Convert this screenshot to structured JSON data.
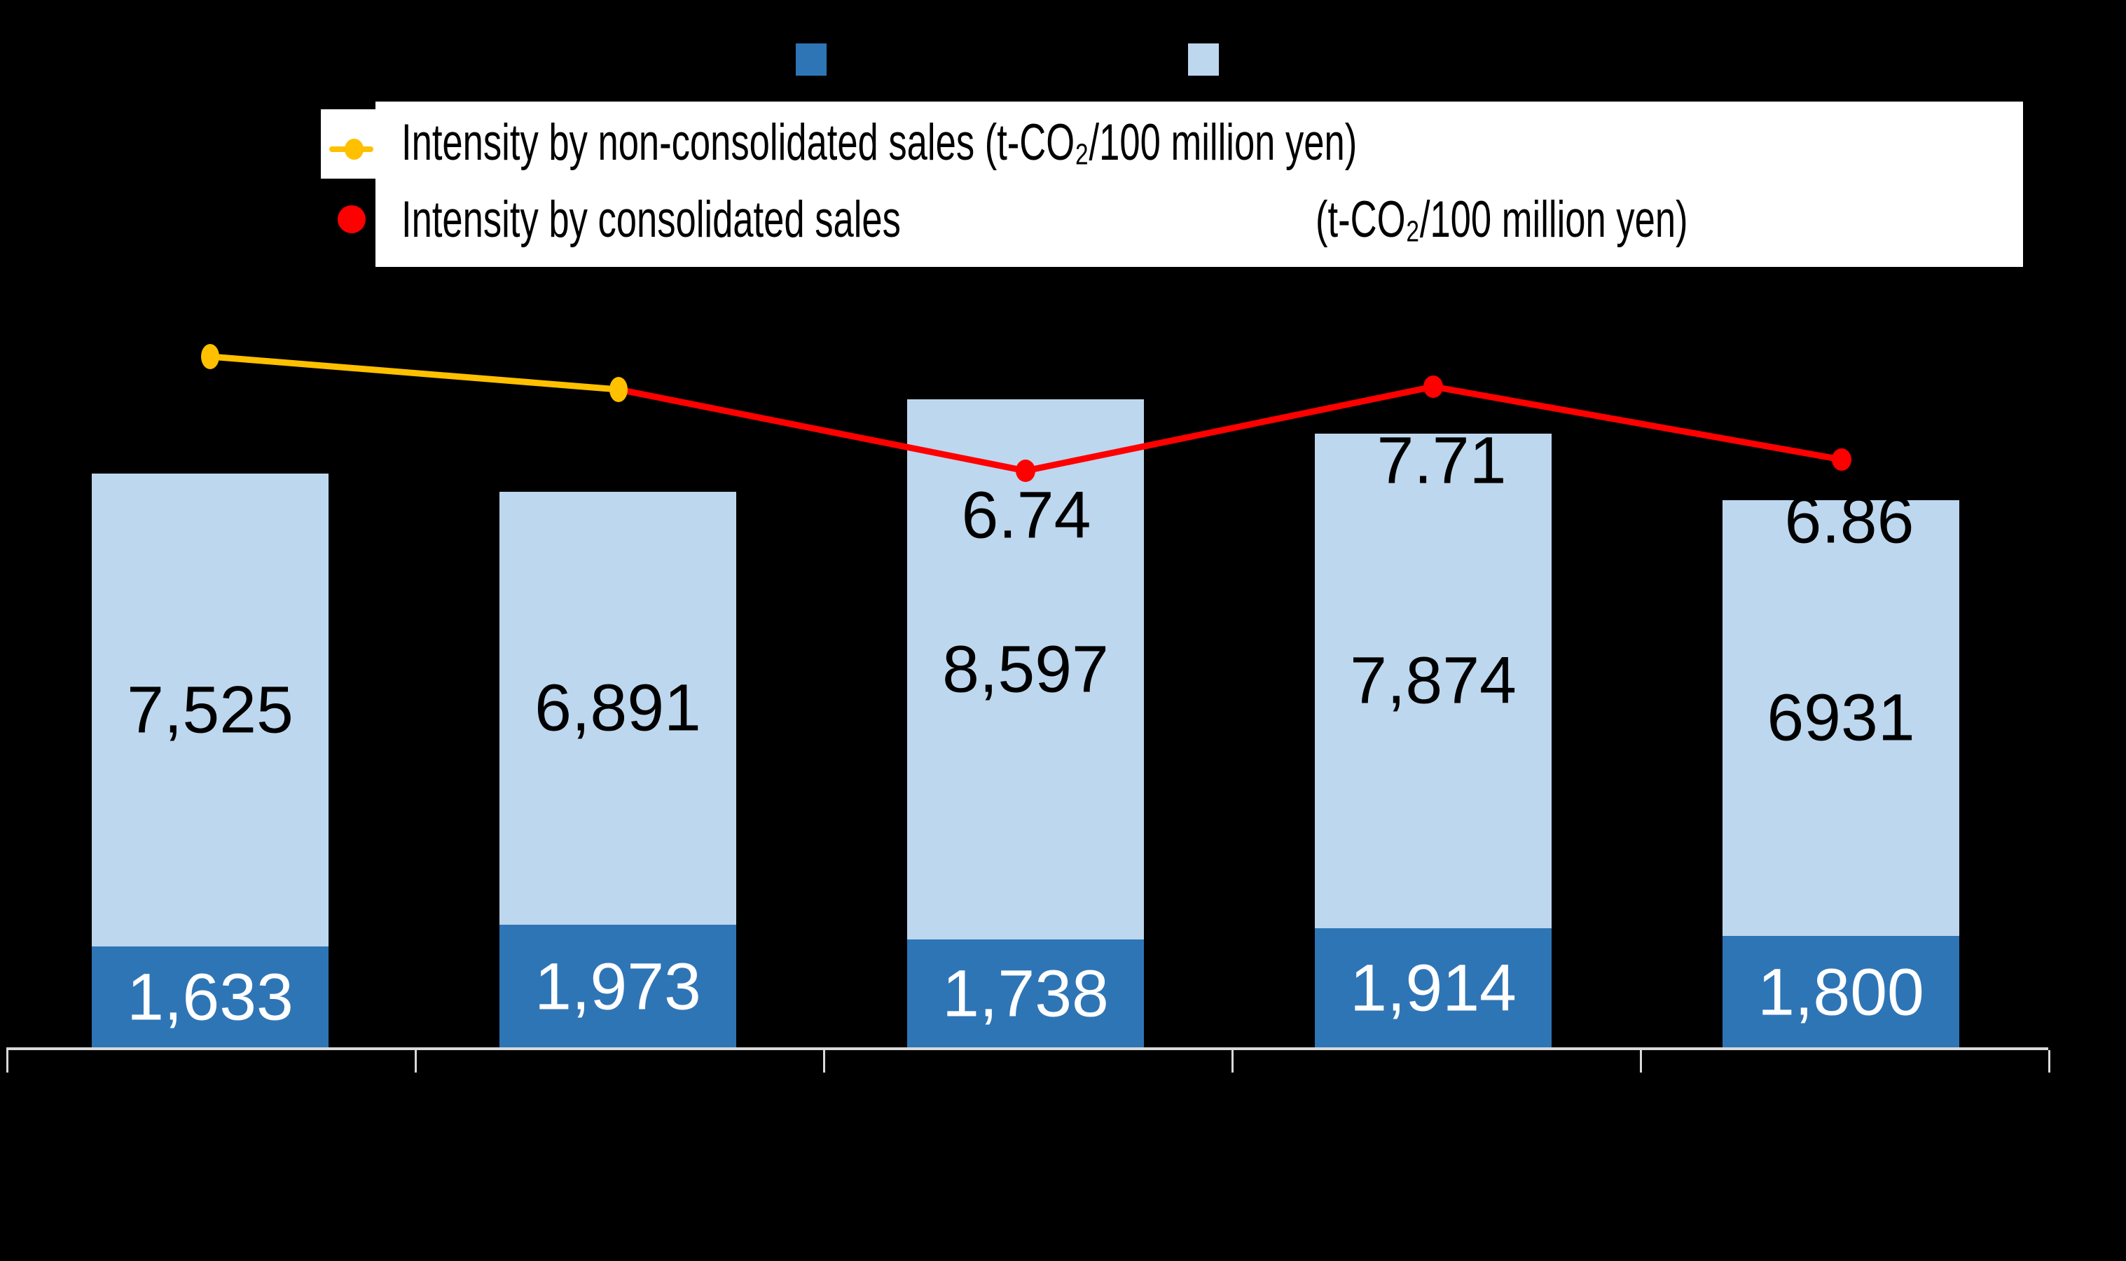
{
  "background_color": "#000000",
  "top_legend_swatches": [
    {
      "name": "dark-blue-series-swatch",
      "color": "#2E75B6"
    },
    {
      "name": "light-blue-series-swatch",
      "color": "#BDD7EE"
    }
  ],
  "legend": {
    "items": [
      {
        "label": "Intensity by non-consolidated sales (t-CO₂/100 million yen)",
        "marker": "yellow-line-dot",
        "color": "#FFC000"
      },
      {
        "label": "Intensity by consolidated sales",
        "unit": "(t-CO₂/100 million yen)",
        "marker": "red-dot",
        "color": "#FF0000"
      }
    ]
  },
  "chart_data": {
    "type": "combo-stacked-bar-line",
    "categories": [
      "",
      "",
      "",
      "",
      ""
    ],
    "bar_series": [
      {
        "name": "bottom-segment-dark-blue",
        "color": "#2E75B6",
        "label_color": "#FFFFFF",
        "values": [
          1633,
          1973,
          1738,
          1914,
          1800
        ],
        "labels": [
          "1,633",
          "1,973",
          "1,738",
          "1,914",
          "1,800"
        ]
      },
      {
        "name": "top-segment-light-blue",
        "color": "#BDD7EE",
        "label_color": "#000000",
        "values": [
          7525,
          6891,
          8597,
          7874,
          6931
        ],
        "labels": [
          "7,525",
          "6,891",
          "8,597",
          "7,874",
          "6931"
        ]
      }
    ],
    "line_series": [
      {
        "name": "Intensity by non-consolidated sales (t-CO₂/100 million yen)",
        "color": "#FFC000",
        "point_labels": [
          "",
          ""
        ]
      },
      {
        "name": "Intensity by consolidated sales (t-CO₂/100 million yen)",
        "color": "#FF0000",
        "point_labels": [
          "",
          "6.74",
          "7.71",
          "6.86"
        ]
      }
    ],
    "axis": {
      "line_color": "#D9D9D9",
      "tick_color": "#D9D9D9"
    },
    "artifact_comma": ","
  }
}
